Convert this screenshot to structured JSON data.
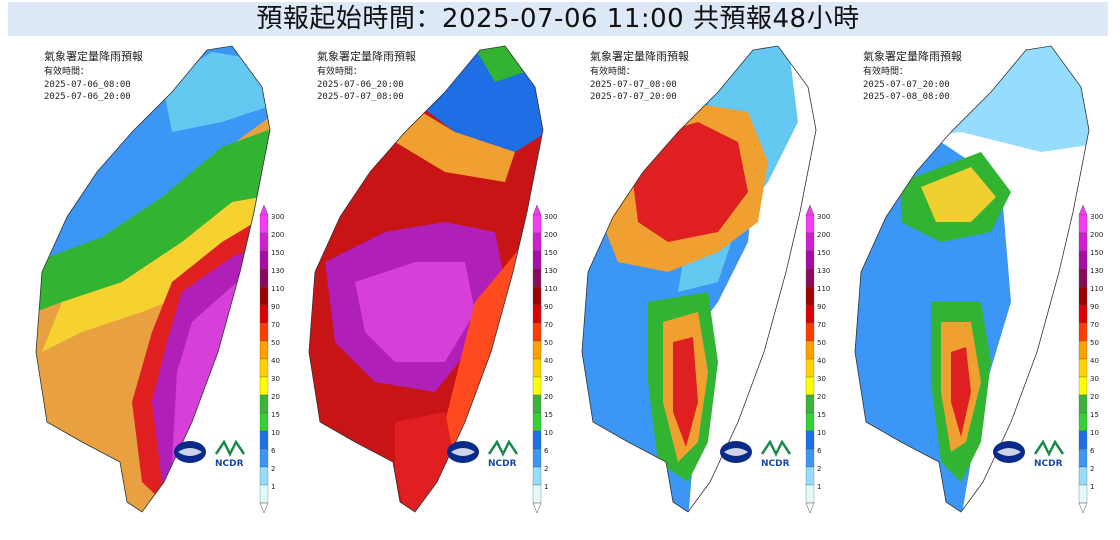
{
  "header": {
    "title": "預報起始時間：2025-07-06 11:00  共預報48小時"
  },
  "panels": [
    {
      "title": "氣象署定量降雨預報",
      "label": "有效時間：",
      "start": "2025-07-06_08:00",
      "end": "2025-07-06_20:00"
    },
    {
      "title": "氣象署定量降雨預報",
      "label": "有效時間：",
      "start": "2025-07-06_20:00",
      "end": "2025-07-07_08:00"
    },
    {
      "title": "氣象署定量降雨預報",
      "label": "有效時間：",
      "start": "2025-07-07_08:00",
      "end": "2025-07-07_20:00"
    },
    {
      "title": "氣象署定量降雨預報",
      "label": "有效時間：",
      "start": "2025-07-07_20:00",
      "end": "2025-07-08_08:00"
    }
  ],
  "legend": {
    "levels": [
      "300",
      "200",
      "150",
      "130",
      "110",
      "90",
      "70",
      "50",
      "40",
      "30",
      "20",
      "15",
      "10",
      "6",
      "2",
      "1"
    ],
    "colors": [
      "#f53bf5",
      "#d21ed2",
      "#aa0aaa",
      "#8c0a5a",
      "#a00000",
      "#dc0000",
      "#ff3c00",
      "#ffa000",
      "#ffd200",
      "#ffff00",
      "#3cb43c",
      "#32d232",
      "#1e6ee6",
      "#3c96f5",
      "#96dcff",
      "#e1fafa"
    ]
  },
  "logos": {
    "agency_icon": "cwa-logo-icon",
    "ncdr_text": "NCDR"
  }
}
